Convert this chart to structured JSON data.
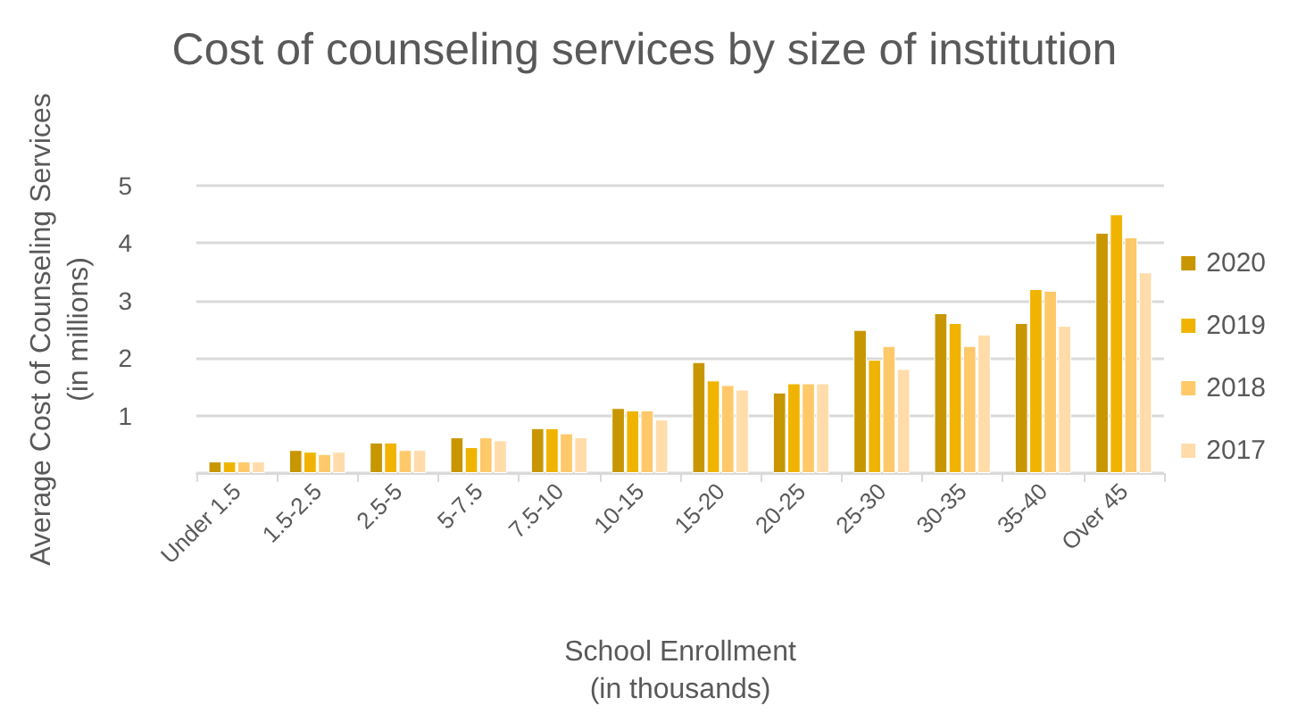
{
  "chart_data": {
    "type": "bar",
    "title": "Cost of counseling services by size of institution",
    "xlabel": "School Enrollment\n(in thousands)",
    "ylabel": "Average Cost of Counseling Services\n(in millions)",
    "categories": [
      "Under 1.5",
      "1.5-2.5",
      "2.5-5",
      "5-7.5",
      "7.5-10",
      "10-15",
      "15-20",
      "20-25",
      "25-30",
      "30-35",
      "35-40",
      "Over 45"
    ],
    "series": [
      {
        "name": "2020",
        "color": "#c89600",
        "values": [
          0.2,
          0.4,
          0.53,
          0.62,
          0.78,
          1.13,
          1.93,
          1.4,
          2.49,
          2.78,
          2.61,
          4.18
        ]
      },
      {
        "name": "2019",
        "color": "#f0b400",
        "values": [
          0.2,
          0.37,
          0.53,
          0.45,
          0.78,
          1.09,
          1.61,
          1.56,
          1.97,
          2.61,
          3.2,
          4.5
        ]
      },
      {
        "name": "2018",
        "color": "#ffc869",
        "values": [
          0.2,
          0.33,
          0.4,
          0.62,
          0.69,
          1.09,
          1.53,
          1.56,
          2.21,
          2.21,
          3.17,
          4.1
        ]
      },
      {
        "name": "2017",
        "color": "#ffdcaa",
        "values": [
          0.2,
          0.37,
          0.4,
          0.57,
          0.62,
          0.93,
          1.45,
          1.56,
          1.81,
          2.41,
          2.56,
          3.49
        ]
      }
    ],
    "ylim": [
      0,
      5
    ],
    "yticks": [
      {
        "value": 0,
        "label": null
      },
      1,
      2,
      3,
      4,
      5
    ],
    "grid": "y",
    "legend": "right"
  }
}
